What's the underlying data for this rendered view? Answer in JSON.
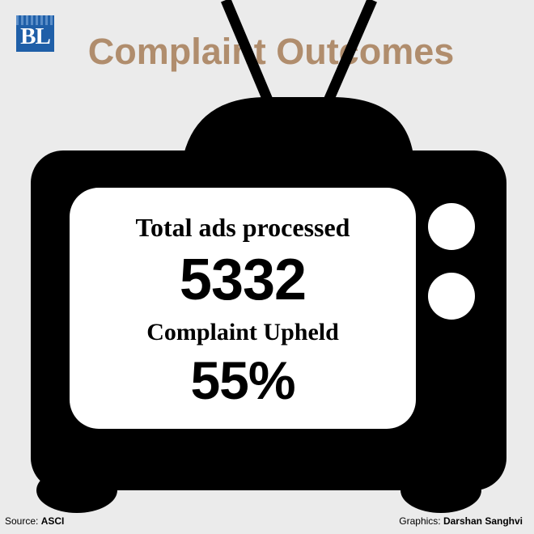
{
  "logo": {
    "text": "BL"
  },
  "title": "Complaint Outcomes",
  "stats": [
    {
      "label": "Total ads processed",
      "value": "5332"
    },
    {
      "label": "Complaint Upheld",
      "value": "55%"
    }
  ],
  "footer": {
    "source_label": "Source:",
    "source_value": "ASCI",
    "graphics_label": "Graphics:",
    "graphics_value": "Darshan Sanghvi"
  },
  "colors": {
    "background": "#ebebeb",
    "title": "#b08d6d",
    "logo": "#1f5fa8",
    "tv": "#000000",
    "screen": "#ffffff"
  },
  "icons": [
    "tv-illustration",
    "bl-logo"
  ]
}
